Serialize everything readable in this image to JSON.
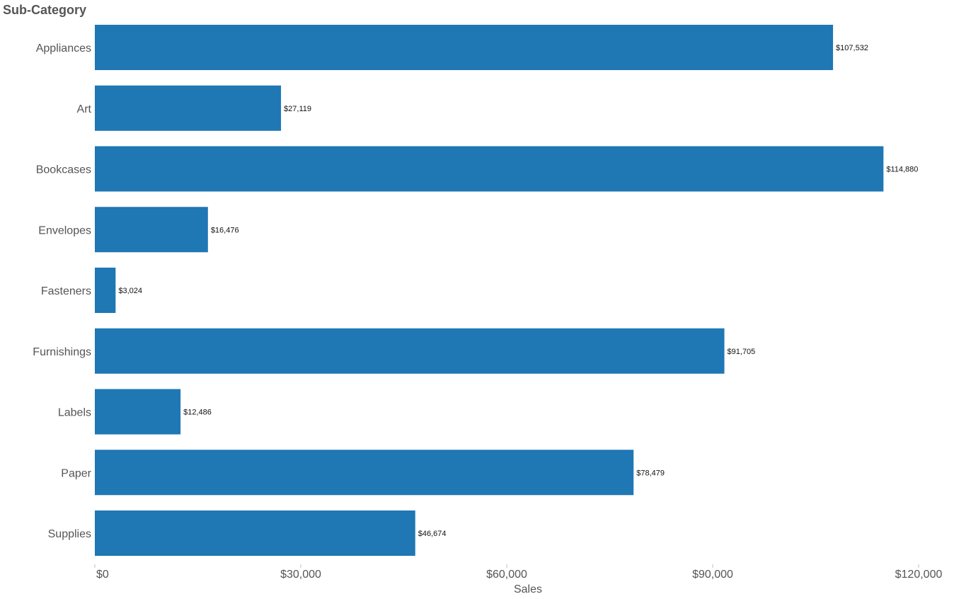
{
  "chart_data": {
    "type": "bar",
    "orientation": "horizontal",
    "category_header": "Sub-Category",
    "categories": [
      "Appliances",
      "Art",
      "Bookcases",
      "Envelopes",
      "Fasteners",
      "Furnishings",
      "Labels",
      "Paper",
      "Supplies"
    ],
    "values": [
      107532,
      27119,
      114880,
      16476,
      3024,
      91705,
      12486,
      78479,
      46674
    ],
    "value_labels": [
      "$107,532",
      "$27,119",
      "$114,880",
      "$16,476",
      "$3,024",
      "$91,705",
      "$12,486",
      "$78,479",
      "$46,674"
    ],
    "xlabel": "Sales",
    "xlim": [
      0,
      120000
    ],
    "x_ticks": [
      0,
      30000,
      60000,
      90000,
      120000
    ],
    "x_tick_labels": [
      "$0",
      "$30,000",
      "$60,000",
      "$90,000",
      "$120,000"
    ],
    "grid": false,
    "bar_color": "#1f77b4"
  }
}
